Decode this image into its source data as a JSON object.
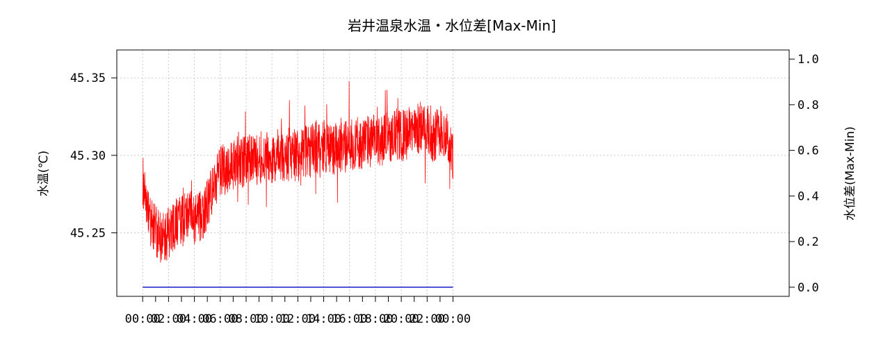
{
  "chart_data": {
    "type": "line",
    "title": "岩井温泉水温・水位差[Max-Min]",
    "ylabel_left": "水温(℃)",
    "ylabel_right": "水位差(Max-Min)",
    "x_tick_labels": [
      "00:00",
      "02:00",
      "04:00",
      "06:00",
      "08:00",
      "10:00",
      "12:00",
      "14:00",
      "16:00",
      "18:00",
      "20:00",
      "22:00",
      "00:00"
    ],
    "x_range_hours": [
      -2,
      50
    ],
    "y_left_ticks": [
      "45.25",
      "45.30",
      "45.35"
    ],
    "y_left_range": [
      45.209,
      45.368
    ],
    "y_right_ticks": [
      "0.0",
      "0.2",
      "0.4",
      "0.6",
      "0.8",
      "1.0"
    ],
    "y_right_range": [
      -0.04,
      1.04
    ],
    "grid": true,
    "series": [
      {
        "axis": "left",
        "color": "#ff0000",
        "points": [
          [
            0,
            45.285
          ],
          [
            0.5,
            45.26
          ],
          [
            1,
            45.252
          ],
          [
            1.5,
            45.245
          ],
          [
            2,
            45.25
          ],
          [
            2.5,
            45.255
          ],
          [
            3,
            45.258
          ],
          [
            3.5,
            45.262
          ],
          [
            4,
            45.258
          ],
          [
            4.5,
            45.26
          ],
          [
            5,
            45.268
          ],
          [
            5.5,
            45.28
          ],
          [
            6,
            45.29
          ],
          [
            6.5,
            45.292
          ],
          [
            7,
            45.295
          ],
          [
            7.5,
            45.296
          ],
          [
            8,
            45.296
          ],
          [
            8.5,
            45.297
          ],
          [
            9,
            45.298
          ],
          [
            9.5,
            45.3
          ],
          [
            10,
            45.298
          ],
          [
            10.5,
            45.297
          ],
          [
            11,
            45.299
          ],
          [
            11.5,
            45.3
          ],
          [
            12,
            45.3
          ],
          [
            12.5,
            45.302
          ],
          [
            13,
            45.303
          ],
          [
            13.5,
            45.305
          ],
          [
            14,
            45.306
          ],
          [
            14.5,
            45.305
          ],
          [
            15,
            45.304
          ],
          [
            15.5,
            45.305
          ],
          [
            16,
            45.307
          ],
          [
            16.5,
            45.308
          ],
          [
            17,
            45.308
          ],
          [
            17.5,
            45.309
          ],
          [
            18,
            45.31
          ],
          [
            18.5,
            45.31
          ],
          [
            19,
            45.312
          ],
          [
            19.5,
            45.314
          ],
          [
            20,
            45.312
          ],
          [
            20.5,
            45.314
          ],
          [
            21,
            45.316
          ],
          [
            21.5,
            45.318
          ],
          [
            22,
            45.316
          ],
          [
            22.5,
            45.312
          ],
          [
            23,
            45.318
          ],
          [
            23.5,
            45.312
          ],
          [
            24,
            45.3
          ]
        ]
      },
      {
        "axis": "right",
        "color": "#0000c8",
        "points": [
          [
            0,
            0.0
          ],
          [
            24,
            0.0
          ]
        ]
      }
    ]
  }
}
